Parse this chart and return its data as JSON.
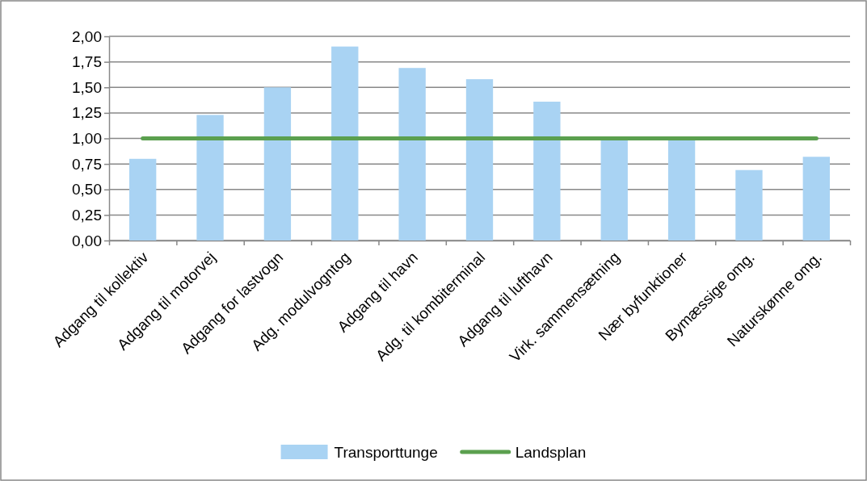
{
  "chart_data": {
    "type": "bar",
    "categories": [
      "Adgang til kollektiv",
      "Adgang til motorvej",
      "Adgang for lastvogn",
      "Adg. modulvogntog",
      "Adgang til havn",
      "Adg. til kombiterminal",
      "Adgang til lufthavn",
      "Virk. sammensætning",
      "Nær byfunktioner",
      "Bymæssige omg.",
      "Naturskønne omg."
    ],
    "series": [
      {
        "name": "Transporttunge",
        "color": "#a9d3f3",
        "values": [
          0.8,
          1.23,
          1.5,
          1.9,
          1.69,
          1.58,
          1.36,
          1.0,
          1.0,
          0.69,
          0.82
        ]
      },
      {
        "name": "Landsplan",
        "type": "line",
        "color": "#5ba04f",
        "values": [
          1,
          1,
          1,
          1,
          1,
          1,
          1,
          1,
          1,
          1,
          1
        ]
      }
    ],
    "ylim": [
      0,
      2
    ],
    "yticks": [
      {
        "value": 0,
        "label": "0,00"
      },
      {
        "value": 0.25,
        "label": "0,25"
      },
      {
        "value": 0.5,
        "label": "0,50"
      },
      {
        "value": 0.75,
        "label": "0,75"
      },
      {
        "value": 1,
        "label": "1,00"
      },
      {
        "value": 1.25,
        "label": "1,25"
      },
      {
        "value": 1.5,
        "label": "1,50"
      },
      {
        "value": 1.75,
        "label": "1,75"
      },
      {
        "value": 2,
        "label": "2,00"
      }
    ],
    "grid": "y",
    "legend": "bottom",
    "marker": "none",
    "line_style": "solid"
  }
}
